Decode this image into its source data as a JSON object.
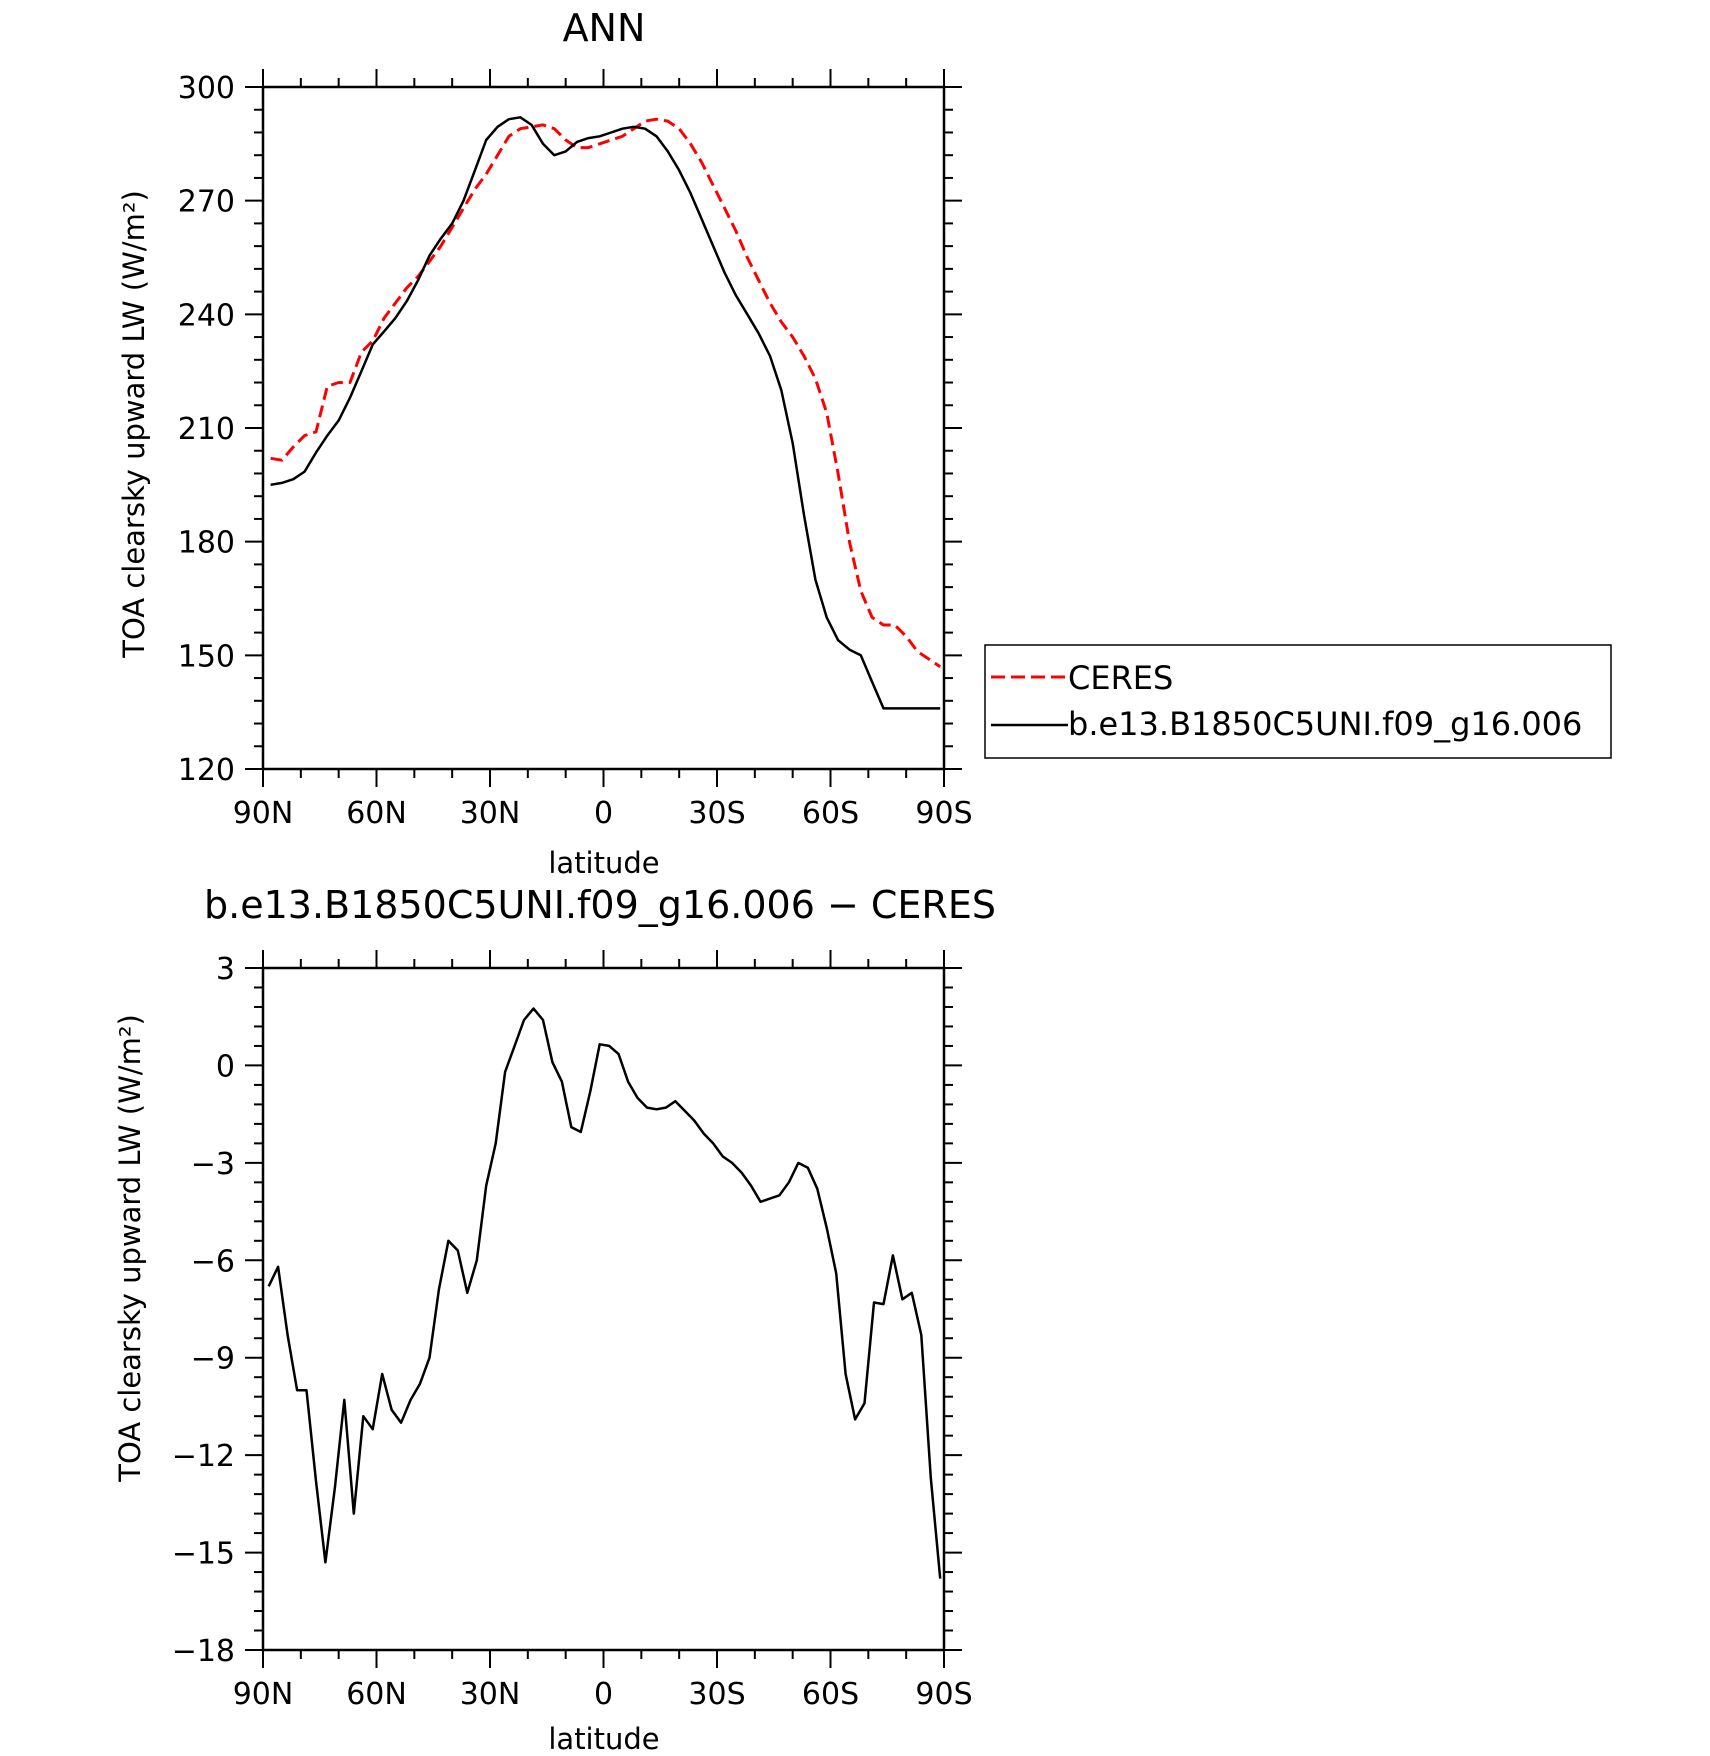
{
  "chart_data": [
    {
      "type": "line",
      "title": "ANN",
      "xlabel": "latitude",
      "ylabel": "TOA clearsky upward LW (W/m²)",
      "ylim": [
        120,
        300
      ],
      "yticks": [
        120,
        150,
        180,
        210,
        240,
        270,
        300
      ],
      "xlim": [
        90,
        -90
      ],
      "xticks": [
        90,
        60,
        30,
        0,
        -30,
        -60,
        -90
      ],
      "xtick_labels": [
        "90N",
        "60N",
        "30N",
        "0",
        "30S",
        "60S",
        "90S"
      ],
      "legend": {
        "placement": "outside-right",
        "entries": [
          "CERES",
          "b.e13.B1850C5UNI.f09_g16.006"
        ]
      },
      "series": [
        {
          "name": "CERES",
          "color": "#ff0000",
          "dash": "dashed",
          "x": [
            88,
            85,
            82,
            79,
            76,
            73,
            70,
            67,
            64,
            61,
            58,
            55,
            52,
            49,
            46,
            43,
            40,
            37,
            34,
            31,
            28,
            25,
            22,
            19,
            16,
            13,
            10,
            7,
            4,
            1,
            -2,
            -5,
            -8,
            -11,
            -14,
            -17,
            -20,
            -23,
            -26,
            -29,
            -32,
            -35,
            -38,
            -41,
            -44,
            -47,
            -50,
            -53,
            -56,
            -59,
            -62,
            -65,
            -68,
            -71,
            -74,
            -77,
            -80,
            -83,
            -86,
            -89
          ],
          "y": [
            202,
            201.5,
            205,
            208,
            209,
            221,
            222,
            222,
            230,
            233,
            239,
            243,
            247,
            250,
            254,
            258,
            263,
            268,
            273,
            277,
            282,
            287,
            289,
            289.5,
            290,
            289,
            286,
            284,
            284,
            285,
            286,
            287,
            289,
            291,
            291.5,
            291,
            289,
            285,
            280,
            274,
            268,
            262,
            255,
            249,
            243,
            238,
            234,
            229,
            223,
            214,
            198,
            180,
            167,
            160,
            158,
            158,
            155,
            151,
            149,
            147
          ]
        },
        {
          "name": "b.e13.B1850C5UNI.f09_g16.006",
          "color": "#000000",
          "dash": "solid",
          "x": [
            88,
            85,
            82,
            79,
            76,
            73,
            70,
            67,
            64,
            61,
            58,
            55,
            52,
            49,
            46,
            43,
            40,
            37,
            34,
            31,
            28,
            25,
            22,
            19,
            16,
            13,
            10,
            7,
            4,
            1,
            -2,
            -5,
            -8,
            -11,
            -14,
            -17,
            -20,
            -23,
            -26,
            -29,
            -32,
            -35,
            -38,
            -41,
            -44,
            -47,
            -50,
            -53,
            -56,
            -59,
            -62,
            -65,
            -68,
            -71,
            -74,
            -77,
            -80,
            -83,
            -86,
            -89
          ],
          "y": [
            195,
            195.5,
            196.5,
            198.5,
            203.5,
            208,
            212,
            218,
            225,
            232,
            235.5,
            239,
            243.5,
            249,
            255.5,
            260,
            264,
            270,
            278,
            286,
            289.5,
            291.5,
            292,
            290,
            285,
            282,
            283,
            285.5,
            286.5,
            287,
            288,
            289,
            289.5,
            289,
            287,
            283,
            278,
            272,
            265,
            258,
            251,
            245,
            240,
            235,
            229,
            220,
            206,
            187,
            170,
            160,
            154,
            151.5,
            150,
            143,
            136,
            136,
            136,
            136,
            136,
            136
          ]
        }
      ]
    },
    {
      "type": "line",
      "title": "b.e13.B1850C5UNI.f09_g16.006 − CERES",
      "xlabel": "latitude",
      "ylabel": "TOA clearsky upward LW (W/m²)",
      "ylim": [
        -18,
        3
      ],
      "yticks": [
        -18,
        -15,
        -12,
        -9,
        -6,
        -3,
        0,
        3
      ],
      "ytick_labels": [
        "−18",
        "−15",
        "−12",
        "−9",
        "−6",
        "−3",
        "0",
        "3"
      ],
      "xlim": [
        90,
        -90
      ],
      "xticks": [
        90,
        60,
        30,
        0,
        -30,
        -60,
        -90
      ],
      "xtick_labels": [
        "90N",
        "60N",
        "30N",
        "0",
        "30S",
        "60S",
        "90S"
      ],
      "series": [
        {
          "color": "#000000",
          "dash": "solid",
          "x": [
            88.5,
            86,
            83.5,
            81,
            78.5,
            76,
            73.5,
            71,
            68.5,
            66,
            63.5,
            61,
            58.5,
            56,
            53.5,
            51,
            48.5,
            46,
            43.5,
            41,
            38.5,
            36,
            33.5,
            31,
            28.5,
            26,
            23.5,
            21,
            18.5,
            16,
            13.5,
            11,
            8.5,
            6,
            3.5,
            1,
            -1.5,
            -4,
            -6.5,
            -9,
            -11.5,
            -14,
            -16.5,
            -19,
            -21.5,
            -24,
            -26.5,
            -29,
            -31.5,
            -34,
            -36.5,
            -39,
            -41.5,
            -44,
            -46.5,
            -49,
            -51.5,
            -54,
            -56.5,
            -59,
            -61.5,
            -64,
            -66.5,
            -69,
            -71.5,
            -74,
            -76.5,
            -79,
            -81.5,
            -84,
            -86.5,
            -89
          ],
          "y": [
            -6.8,
            -6.2,
            -8.3,
            -10.0,
            -10.0,
            -12.8,
            -15.3,
            -13.0,
            -10.3,
            -13.8,
            -10.8,
            -11.2,
            -9.5,
            -10.6,
            -11.0,
            -10.3,
            -9.8,
            -9.0,
            -6.9,
            -5.4,
            -5.7,
            -7.0,
            -6.0,
            -3.7,
            -2.4,
            -0.2,
            0.6,
            1.4,
            1.75,
            1.4,
            0.1,
            -0.5,
            -1.9,
            -2.05,
            -0.8,
            0.65,
            0.6,
            0.35,
            -0.5,
            -1.0,
            -1.3,
            -1.35,
            -1.3,
            -1.1,
            -1.4,
            -1.7,
            -2.1,
            -2.4,
            -2.8,
            -3.0,
            -3.3,
            -3.7,
            -4.2,
            -4.1,
            -4.0,
            -3.6,
            -3.0,
            -3.15,
            -3.8,
            -5.0,
            -6.4,
            -9.5,
            -10.9,
            -10.4,
            -7.3,
            -7.35,
            -5.85,
            -7.2,
            -7.0,
            -8.3,
            -12.7,
            -15.8
          ]
        }
      ]
    }
  ]
}
